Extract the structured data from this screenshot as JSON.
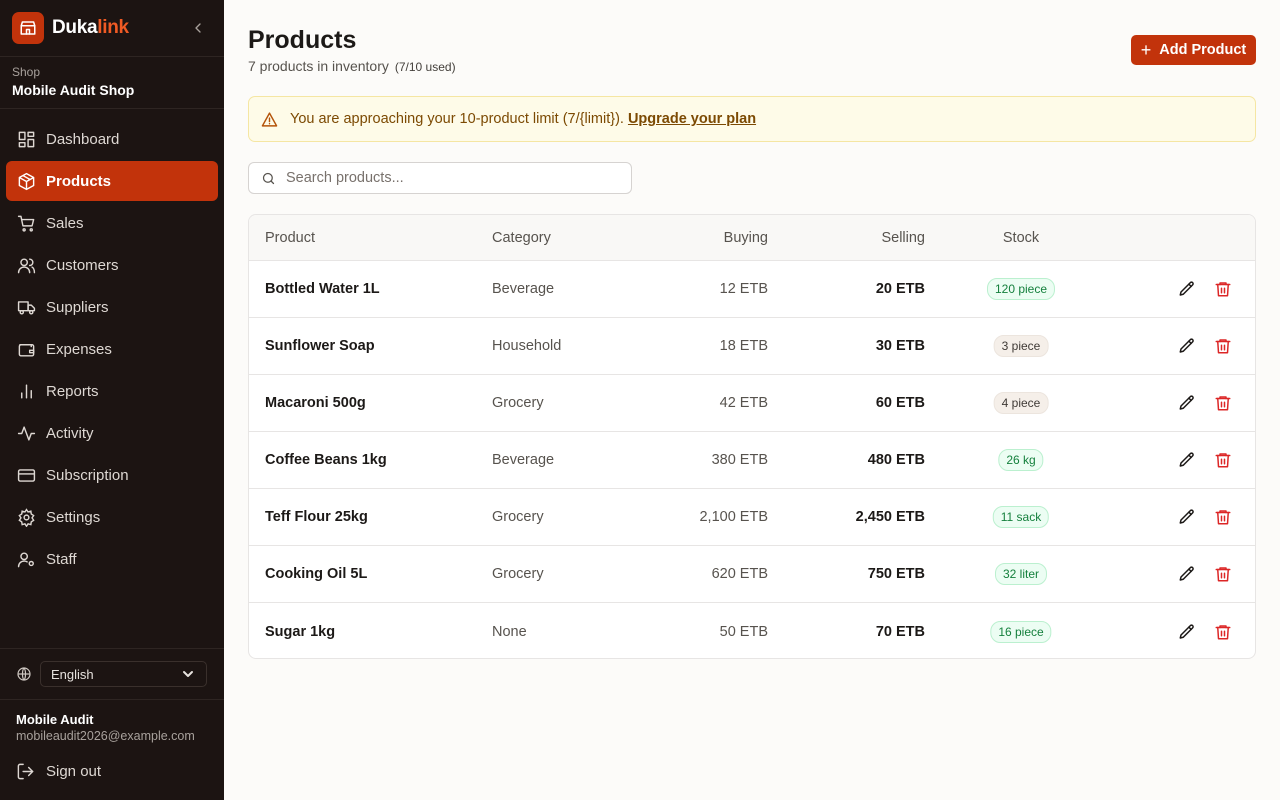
{
  "brand": {
    "part1": "Duka",
    "part2": "link"
  },
  "shop": {
    "label": "Shop",
    "name": "Mobile Audit Shop"
  },
  "nav": {
    "dashboard": "Dashboard",
    "products": "Products",
    "sales": "Sales",
    "customers": "Customers",
    "suppliers": "Suppliers",
    "expenses": "Expenses",
    "reports": "Reports",
    "activity": "Activity",
    "subscription": "Subscription",
    "settings": "Settings",
    "staff": "Staff"
  },
  "language": {
    "selected": "English"
  },
  "user": {
    "name": "Mobile Audit",
    "email": "mobileaudit2026@example.com",
    "sign_out": "Sign out"
  },
  "header": {
    "title": "Products",
    "subtitle": "7 products in inventory",
    "usage": "(7/10 used)",
    "add_button": "Add Product"
  },
  "alert": {
    "text": "You are approaching your 10-product limit (7/{limit}).",
    "link": "Upgrade your plan"
  },
  "search": {
    "placeholder": "Search products..."
  },
  "table": {
    "columns": {
      "product": "Product",
      "category": "Category",
      "buying": "Buying",
      "selling": "Selling",
      "stock": "Stock"
    },
    "rows": [
      {
        "product": "Bottled Water 1L",
        "category": "Beverage",
        "buying": "12 ETB",
        "selling": "20 ETB",
        "stock": "120 piece",
        "stock_status": "ok"
      },
      {
        "product": "Sunflower Soap",
        "category": "Household",
        "buying": "18 ETB",
        "selling": "30 ETB",
        "stock": "3 piece",
        "stock_status": "low"
      },
      {
        "product": "Macaroni 500g",
        "category": "Grocery",
        "buying": "42 ETB",
        "selling": "60 ETB",
        "stock": "4 piece",
        "stock_status": "low"
      },
      {
        "product": "Coffee Beans 1kg",
        "category": "Beverage",
        "buying": "380 ETB",
        "selling": "480 ETB",
        "stock": "26 kg",
        "stock_status": "ok"
      },
      {
        "product": "Teff Flour 25kg",
        "category": "Grocery",
        "buying": "2,100 ETB",
        "selling": "2,450 ETB",
        "stock": "11 sack",
        "stock_status": "ok"
      },
      {
        "product": "Cooking Oil 5L",
        "category": "Grocery",
        "buying": "620 ETB",
        "selling": "750 ETB",
        "stock": "32 liter",
        "stock_status": "ok"
      },
      {
        "product": "Sugar 1kg",
        "category": "None",
        "buying": "50 ETB",
        "selling": "70 ETB",
        "stock": "16 piece",
        "stock_status": "ok"
      }
    ]
  },
  "colors": {
    "accent": "#c2330b",
    "sidebar_bg": "#1c1412",
    "delete": "#dc2626",
    "stock_ok": "#15803d"
  }
}
